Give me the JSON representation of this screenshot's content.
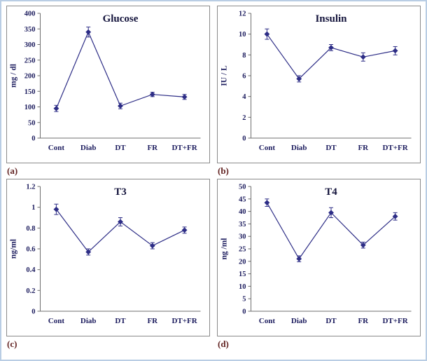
{
  "page": {
    "panel_labels": [
      "(a)",
      "(b)",
      "(c)",
      "(d)"
    ]
  },
  "style": {
    "series_color": "#2d2d86",
    "text_color": "#1c1c5e",
    "axis_color": "#6f6f6f",
    "panel_label_color": "#632423"
  },
  "chart_data": [
    {
      "type": "line",
      "title": "Glucose",
      "ylabel": "mg / dl",
      "categories": [
        "Cont",
        "Diab",
        "DT",
        "FR",
        "DT+FR"
      ],
      "values": [
        95,
        340,
        103,
        140,
        132
      ],
      "errors": [
        10,
        16,
        9,
        7,
        8
      ],
      "ylim": [
        0,
        400
      ],
      "ytick": 50,
      "grid": false,
      "legend": "none"
    },
    {
      "type": "line",
      "title": "Insulin",
      "ylabel": "IU / L",
      "categories": [
        "Cont",
        "Diab",
        "DT",
        "FR",
        "DT+FR"
      ],
      "values": [
        10.0,
        5.7,
        8.7,
        7.8,
        8.4
      ],
      "errors": [
        0.5,
        0.3,
        0.3,
        0.4,
        0.4
      ],
      "ylim": [
        0,
        12
      ],
      "ytick": 2,
      "grid": false,
      "legend": "none"
    },
    {
      "type": "line",
      "title": "T3",
      "ylabel": "ng/ml",
      "categories": [
        "Cont",
        "Diab",
        "DT",
        "FR",
        "DT+FR"
      ],
      "values": [
        0.98,
        0.57,
        0.86,
        0.63,
        0.78
      ],
      "errors": [
        0.05,
        0.03,
        0.04,
        0.03,
        0.03
      ],
      "ylim": [
        0,
        1.2
      ],
      "ytick": 0.2,
      "grid": false,
      "legend": "none"
    },
    {
      "type": "line",
      "title": "T4",
      "ylabel": "ng /ml",
      "categories": [
        "Cont",
        "Diab",
        "DT",
        "FR",
        "DT+FR"
      ],
      "values": [
        43.5,
        21,
        39.5,
        26.5,
        38
      ],
      "errors": [
        1.5,
        1.2,
        2,
        1.2,
        1.5
      ],
      "ylim": [
        0,
        50
      ],
      "ytick": 5,
      "grid": false,
      "legend": "none"
    }
  ]
}
